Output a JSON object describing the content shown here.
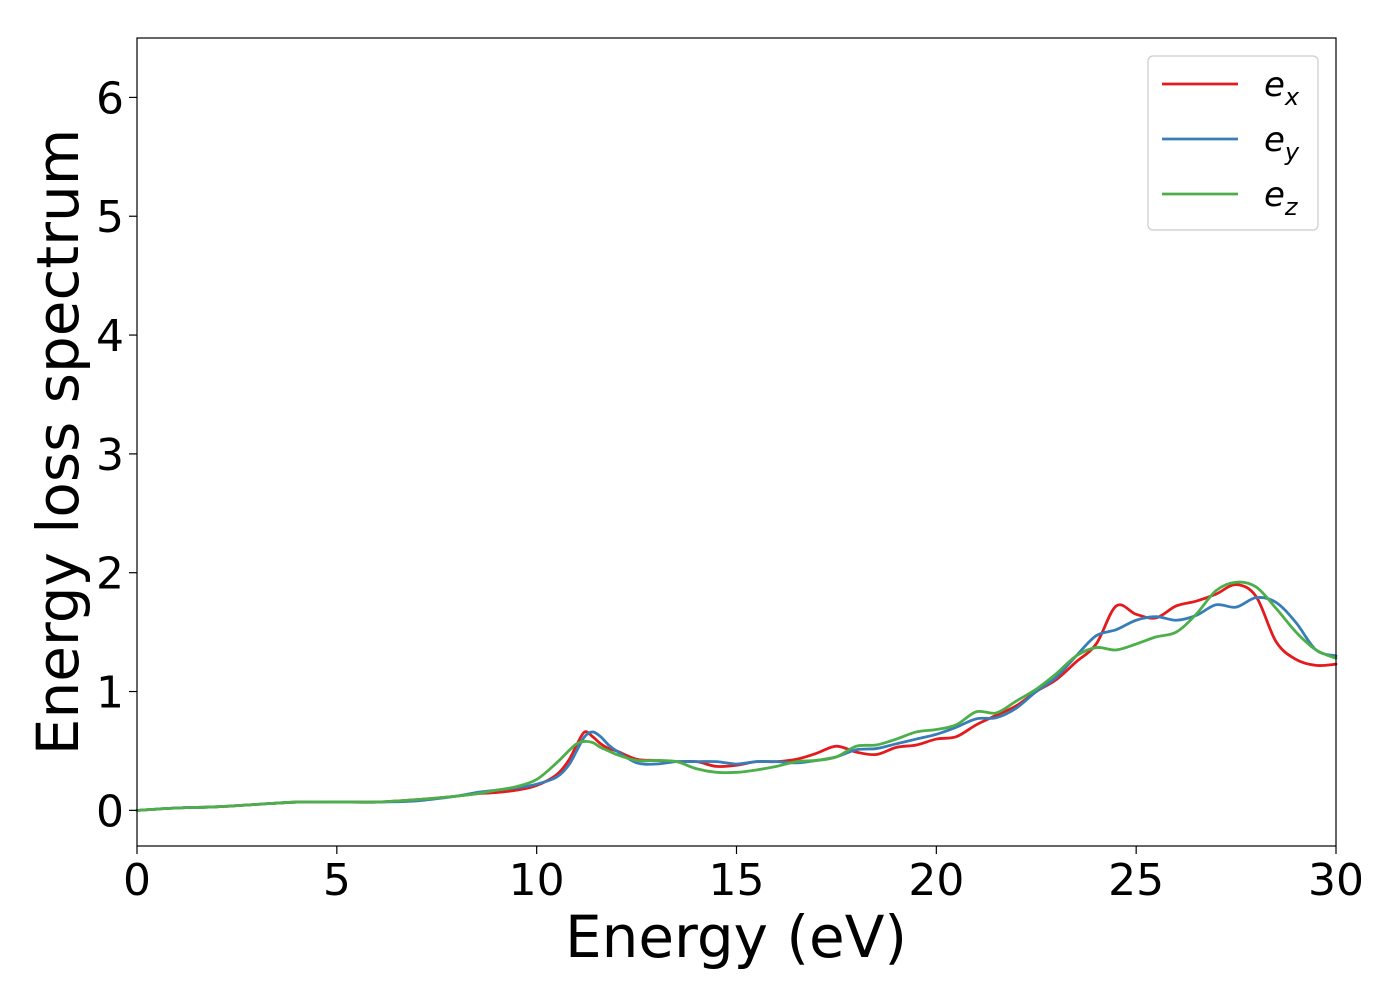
{
  "chart_data": {
    "type": "line",
    "title": "",
    "xlabel": "Energy (eV)",
    "ylabel": "Energy loss spectrum",
    "xlim": [
      0,
      30
    ],
    "ylim": [
      -0.3,
      6.5
    ],
    "xticks": [
      0,
      5,
      10,
      15,
      20,
      25,
      30
    ],
    "yticks": [
      0,
      1,
      2,
      3,
      4,
      5,
      6
    ],
    "grid": false,
    "legend_position": "top-right",
    "x": [
      0,
      1,
      2,
      3,
      4,
      5,
      6,
      7,
      8,
      8.5,
      9,
      9.5,
      10,
      10.5,
      10.8,
      11,
      11.2,
      11.4,
      11.6,
      11.8,
      12,
      12.5,
      13,
      13.5,
      14,
      14.5,
      15,
      15.5,
      16,
      16.5,
      17,
      17.5,
      18,
      18.5,
      19,
      19.5,
      20,
      20.5,
      21,
      21.5,
      22,
      22.5,
      23,
      23.5,
      24,
      24.5,
      25,
      25.5,
      26,
      26.5,
      27,
      27.5,
      28,
      28.5,
      29,
      29.5,
      30
    ],
    "series": [
      {
        "name": "e",
        "name_subscript": "x",
        "color": "#e41a1c",
        "values": [
          0.0,
          0.02,
          0.03,
          0.05,
          0.07,
          0.07,
          0.07,
          0.09,
          0.12,
          0.14,
          0.15,
          0.17,
          0.21,
          0.3,
          0.42,
          0.55,
          0.66,
          0.62,
          0.56,
          0.52,
          0.5,
          0.43,
          0.42,
          0.41,
          0.41,
          0.37,
          0.38,
          0.41,
          0.41,
          0.43,
          0.48,
          0.54,
          0.49,
          0.47,
          0.53,
          0.55,
          0.6,
          0.62,
          0.72,
          0.8,
          0.88,
          1.0,
          1.1,
          1.25,
          1.4,
          1.72,
          1.65,
          1.62,
          1.72,
          1.76,
          1.82,
          1.9,
          1.8,
          1.42,
          1.27,
          1.22,
          1.23
        ]
      },
      {
        "name": "e",
        "name_subscript": "y",
        "color": "#377eb8",
        "values": [
          0.0,
          0.02,
          0.03,
          0.05,
          0.07,
          0.07,
          0.07,
          0.08,
          0.12,
          0.15,
          0.17,
          0.19,
          0.22,
          0.28,
          0.38,
          0.5,
          0.62,
          0.66,
          0.62,
          0.55,
          0.5,
          0.4,
          0.39,
          0.41,
          0.41,
          0.41,
          0.39,
          0.41,
          0.41,
          0.4,
          0.42,
          0.45,
          0.51,
          0.52,
          0.56,
          0.6,
          0.64,
          0.7,
          0.77,
          0.78,
          0.86,
          1.0,
          1.12,
          1.3,
          1.47,
          1.52,
          1.6,
          1.63,
          1.6,
          1.64,
          1.73,
          1.71,
          1.79,
          1.75,
          1.58,
          1.35,
          1.3
        ]
      },
      {
        "name": "e",
        "name_subscript": "z",
        "color": "#4daf4a",
        "values": [
          0.0,
          0.02,
          0.03,
          0.05,
          0.07,
          0.07,
          0.07,
          0.09,
          0.12,
          0.14,
          0.17,
          0.2,
          0.26,
          0.4,
          0.5,
          0.56,
          0.58,
          0.57,
          0.53,
          0.5,
          0.47,
          0.42,
          0.42,
          0.41,
          0.35,
          0.32,
          0.32,
          0.34,
          0.37,
          0.41,
          0.42,
          0.45,
          0.54,
          0.55,
          0.6,
          0.66,
          0.68,
          0.72,
          0.83,
          0.82,
          0.92,
          1.02,
          1.15,
          1.3,
          1.37,
          1.35,
          1.4,
          1.46,
          1.5,
          1.65,
          1.85,
          1.92,
          1.88,
          1.7,
          1.5,
          1.35,
          1.28
        ]
      }
    ]
  }
}
